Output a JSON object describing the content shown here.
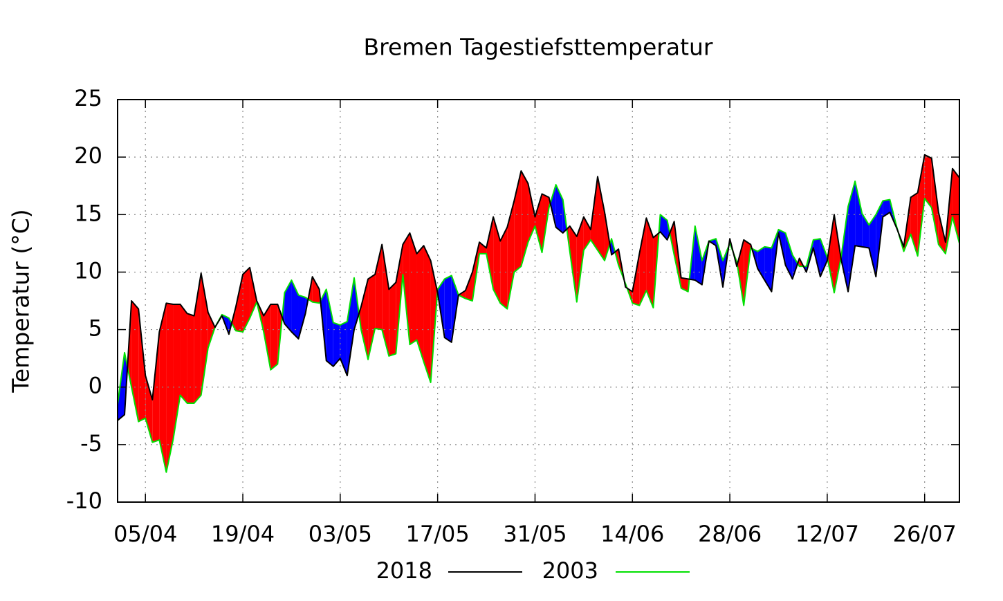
{
  "chart_data": {
    "type": "line",
    "title": "Bremen Tagestiefsttemperatur",
    "y_label": "Temperatur (°C)",
    "x": [
      "01/04",
      "02/04",
      "03/04",
      "04/04",
      "05/04",
      "06/04",
      "07/04",
      "08/04",
      "09/04",
      "10/04",
      "11/04",
      "12/04",
      "13/04",
      "14/04",
      "15/04",
      "16/04",
      "17/04",
      "18/04",
      "19/04",
      "20/04",
      "21/04",
      "22/04",
      "23/04",
      "24/04",
      "25/04",
      "26/04",
      "27/04",
      "28/04",
      "29/04",
      "30/04",
      "01/05",
      "02/05",
      "03/05",
      "04/05",
      "05/05",
      "06/05",
      "07/05",
      "08/05",
      "09/05",
      "10/05",
      "11/05",
      "12/05",
      "13/05",
      "14/05",
      "15/05",
      "16/05",
      "17/05",
      "18/05",
      "19/05",
      "20/05",
      "21/05",
      "22/05",
      "23/05",
      "24/05",
      "25/05",
      "26/05",
      "27/05",
      "28/05",
      "29/05",
      "30/05",
      "31/05",
      "01/06",
      "02/06",
      "03/06",
      "04/06",
      "05/06",
      "06/06",
      "07/06",
      "08/06",
      "09/06",
      "10/06",
      "11/06",
      "12/06",
      "13/06",
      "14/06",
      "15/06",
      "16/06",
      "17/06",
      "18/06",
      "19/06",
      "20/06",
      "21/06",
      "22/06",
      "23/06",
      "24/06",
      "25/06",
      "26/06",
      "27/06",
      "28/06",
      "29/06",
      "30/06",
      "01/07",
      "02/07",
      "03/07",
      "04/07",
      "05/07",
      "06/07",
      "07/07",
      "08/07",
      "09/07",
      "10/07",
      "11/07",
      "12/07",
      "13/07",
      "14/07",
      "15/07",
      "16/07",
      "17/07",
      "18/07",
      "19/07",
      "20/07",
      "21/07",
      "22/07",
      "23/07",
      "24/07",
      "25/07",
      "26/07",
      "27/07",
      "28/07",
      "29/07",
      "30/07",
      "31/07"
    ],
    "xlim": [
      "01/04",
      "31/07"
    ],
    "xticks": [
      "05/04",
      "19/04",
      "03/05",
      "17/05",
      "31/05",
      "14/06",
      "28/06",
      "12/07",
      "26/07"
    ],
    "ylim": [
      -10,
      25
    ],
    "yticks": [
      -10,
      -5,
      0,
      5,
      10,
      15,
      20,
      25
    ],
    "grid": true,
    "fill_above_color": "#ff0000",
    "fill_below_color": "#0000ff",
    "series": [
      {
        "name": "2018",
        "color": "#000000",
        "values": [
          -2.9,
          -2.4,
          7.5,
          6.8,
          1,
          -1.1,
          4.8,
          7.3,
          7.2,
          7.2,
          6.4,
          6.2,
          9.9,
          6.5,
          5.2,
          6.2,
          4.6,
          7,
          9.8,
          10.4,
          7.5,
          6.2,
          7.2,
          7.2,
          5.5,
          4.8,
          4.2,
          6.4,
          9.6,
          8.5,
          2.3,
          1.8,
          2.5,
          1,
          5,
          7,
          9.4,
          9.8,
          12.4,
          8.5,
          9.1,
          12.4,
          13.4,
          11.6,
          12.3,
          11,
          8.2,
          4.3,
          3.9,
          8,
          8.4,
          10,
          12.6,
          12.1,
          14.8,
          12.7,
          13.9,
          16.2,
          18.8,
          17.7,
          14.8,
          16.8,
          16.5,
          13.9,
          13.4,
          14,
          13.1,
          14.8,
          13.7,
          18.3,
          15.2,
          11.5,
          12,
          8.7,
          8.3,
          11.6,
          14.7,
          13,
          13.5,
          12.8,
          14.4,
          9.5,
          9.4,
          9.3,
          8.9,
          12.7,
          12.3,
          8.7,
          12.9,
          10.5,
          12.8,
          12.4,
          10.3,
          9.3,
          8.3,
          13.4,
          10.6,
          9.4,
          11.2,
          10,
          12.1,
          9.6,
          11,
          15,
          11.1,
          8.3,
          12.3,
          12.2,
          12.1,
          9.6,
          14.8,
          15.2,
          13.8,
          12.2,
          16.5,
          16.9,
          20.2,
          19.9,
          15.2,
          12.6,
          19,
          18.2
        ]
      },
      {
        "name": "2003",
        "color": "#00e000",
        "values": [
          -1.5,
          3,
          0,
          -3,
          -2.7,
          -4.8,
          -4.6,
          -7.4,
          -4.5,
          -0.7,
          -1.4,
          -1.4,
          -0.7,
          3.4,
          5.2,
          6.3,
          6,
          4.9,
          4.8,
          6,
          7.4,
          4.8,
          1.5,
          2,
          8.2,
          9.3,
          8,
          7.8,
          7.4,
          7.3,
          8.5,
          5.6,
          5.4,
          5.7,
          9.5,
          5,
          2.4,
          5.1,
          5,
          2.7,
          2.9,
          9.8,
          3.7,
          4.1,
          2.2,
          0.4,
          8.5,
          9.4,
          9.7,
          8,
          7.7,
          7.5,
          11.6,
          11.6,
          8.5,
          7.3,
          6.8,
          10,
          10.5,
          12.6,
          14,
          11.7,
          15.6,
          17.6,
          16.3,
          11.8,
          7.4,
          11.9,
          12.8,
          11.9,
          11,
          12.9,
          10.6,
          9,
          7.3,
          7.1,
          8.4,
          6.9,
          15,
          14.5,
          11.5,
          8.6,
          8.3,
          14,
          11,
          12.7,
          12.9,
          11,
          12.5,
          10.9,
          7.1,
          12.1,
          11.8,
          12.2,
          12.1,
          13.7,
          13.4,
          11.5,
          10.5,
          10.5,
          12.8,
          12.9,
          11.3,
          8.2,
          11.3,
          15.7,
          17.9,
          15.1,
          14.1,
          15,
          16.2,
          16.3,
          13.9,
          11.8,
          13.3,
          11.4,
          16.4,
          15.6,
          12.4,
          11.6,
          14.8,
          12.5
        ]
      }
    ]
  }
}
